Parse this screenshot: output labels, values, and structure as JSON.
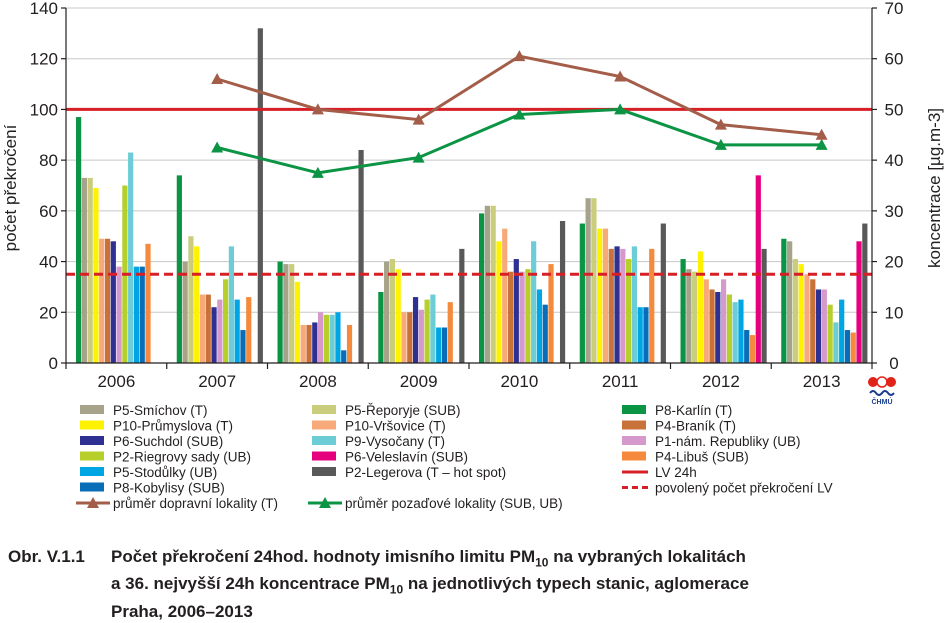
{
  "chart_data": {
    "type": "bar",
    "categories": [
      "2006",
      "2007",
      "2008",
      "2009",
      "2010",
      "2011",
      "2012",
      "2013"
    ],
    "ylabel_left": "počet překročení",
    "ylabel_right": "koncentrace [µg.m-3]",
    "ylim_left": [
      0,
      140
    ],
    "ylim_right": [
      0,
      70
    ],
    "yticks_left": [
      "0",
      "20",
      "40",
      "60",
      "80",
      "100",
      "120",
      "140"
    ],
    "yticks_right": [
      "0",
      "10",
      "20",
      "30",
      "40",
      "50",
      "60",
      "70"
    ],
    "bar_series": [
      {
        "name": "P8-Karlín (T)",
        "color": "#0b9444",
        "values": [
          97,
          74,
          40,
          28,
          59,
          55,
          41,
          49
        ]
      },
      {
        "name": "P5-Smíchov (T)",
        "color": "#a6a38a",
        "values": [
          73,
          40,
          39,
          40,
          62,
          65,
          37,
          48
        ]
      },
      {
        "name": "P5-Řeporyje (SUB)",
        "color": "#c9cd7c",
        "values": [
          73,
          50,
          39,
          41,
          62,
          65,
          36,
          41
        ]
      },
      {
        "name": "P10-Průmyslova (T)",
        "color": "#fff200",
        "values": [
          69,
          46,
          32,
          37,
          48,
          53,
          44,
          39
        ]
      },
      {
        "name": "P10-Vršovice (T)",
        "color": "#f7a97a",
        "values": [
          49,
          27,
          15,
          20,
          53,
          53,
          33,
          35
        ]
      },
      {
        "name": "P4-Braník (T)",
        "color": "#c8723a",
        "values": [
          49,
          27,
          15,
          20,
          36,
          45,
          29,
          33
        ]
      },
      {
        "name": "P6-Suchdol (SUB)",
        "color": "#2e3192",
        "values": [
          48,
          22,
          16,
          26,
          41,
          46,
          28,
          29
        ]
      },
      {
        "name": "P1-nám. Republiky (UB)",
        "color": "#d59acb",
        "values": [
          38,
          25,
          20,
          21,
          36,
          45,
          33,
          29
        ]
      },
      {
        "name": "P2-Riegrovy sady (UB)",
        "color": "#b6cf2a",
        "values": [
          70,
          33,
          19,
          25,
          37,
          41,
          27,
          23
        ]
      },
      {
        "name": "P9-Vysočany (T)",
        "color": "#6dcdd6",
        "values": [
          83,
          46,
          19,
          27,
          48,
          46,
          24,
          16
        ]
      },
      {
        "name": "P5-Stodůlky (UB)",
        "color": "#00a6e4",
        "values": [
          38,
          25,
          20,
          14,
          29,
          22,
          25,
          25
        ]
      },
      {
        "name": "P8-Kobylisy (SUB)",
        "color": "#0a6db8",
        "values": [
          38,
          13,
          5,
          14,
          23,
          22,
          13,
          13
        ]
      },
      {
        "name": "P4-Libuš (SUB)",
        "color": "#f58a3c",
        "values": [
          47,
          26,
          15,
          24,
          39,
          45,
          11,
          12
        ]
      },
      {
        "name": "P6-Veleslavín (SUB)",
        "color": "#e6007e",
        "values": [
          null,
          null,
          null,
          null,
          null,
          null,
          74,
          48
        ]
      },
      {
        "name": "P2-Legerova (T – hot spot)",
        "color": "#595959",
        "values": [
          null,
          132,
          84,
          45,
          56,
          55,
          45,
          55
        ]
      }
    ],
    "line_series": [
      {
        "name": "průměr dopravní lokality (T)",
        "color": "#a35d48",
        "axis": "right",
        "values": [
          null,
          56,
          50,
          48,
          60.5,
          56.5,
          47,
          45
        ]
      },
      {
        "name": "průměr pozaďové lokality (SUB, UB)",
        "color": "#0b9444",
        "axis": "right",
        "values": [
          null,
          42.5,
          37.5,
          40.5,
          49,
          50,
          43,
          43
        ]
      }
    ],
    "reference_lines": [
      {
        "name": "LV 24h",
        "color": "#d71f26",
        "value": 100,
        "style": "solid"
      },
      {
        "name": "povolený počet překročení LV",
        "color": "#d71f26",
        "value": 35,
        "style": "dashed"
      }
    ],
    "legend_columns": [
      [
        {
          "name": "P5-Smíchov (T)",
          "color": "#a6a38a",
          "kind": "bar"
        },
        {
          "name": "P10-Průmyslova (T)",
          "color": "#fff200",
          "kind": "bar"
        },
        {
          "name": "P6-Suchdol (SUB)",
          "color": "#2e3192",
          "kind": "bar"
        },
        {
          "name": "P2-Riegrovy sady (UB)",
          "color": "#b6cf2a",
          "kind": "bar"
        },
        {
          "name": "P5-Stodůlky (UB)",
          "color": "#00a6e4",
          "kind": "bar"
        },
        {
          "name": "P8-Kobylisy (SUB)",
          "color": "#0a6db8",
          "kind": "bar"
        },
        {
          "name": "průměr dopravní lokality (T)",
          "color": "#a35d48",
          "kind": "line-marker"
        }
      ],
      [
        {
          "name": "P5-Řeporyje (SUB)",
          "color": "#c9cd7c",
          "kind": "bar"
        },
        {
          "name": "P10-Vršovice (T)",
          "color": "#f7a97a",
          "kind": "bar"
        },
        {
          "name": "P9-Vysočany (T)",
          "color": "#6dcdd6",
          "kind": "bar"
        },
        {
          "name": "P6-Veleslavín (SUB)",
          "color": "#e6007e",
          "kind": "bar"
        },
        {
          "name": "P2-Legerova (T – hot spot)",
          "color": "#595959",
          "kind": "bar"
        },
        {
          "name": "",
          "color": "",
          "kind": "none"
        },
        {
          "name": "průměr pozaďové lokality (SUB, UB)",
          "color": "#0b9444",
          "kind": "line-marker"
        }
      ],
      [
        {
          "name": "P8-Karlín (T)",
          "color": "#0b9444",
          "kind": "bar"
        },
        {
          "name": "P4-Braník (T)",
          "color": "#c8723a",
          "kind": "bar"
        },
        {
          "name": "P1-nám. Republiky (UB)",
          "color": "#d59acb",
          "kind": "bar"
        },
        {
          "name": "P4-Libuš (SUB)",
          "color": "#f58a3c",
          "kind": "bar"
        },
        {
          "name": "LV 24h",
          "color": "#d71f26",
          "kind": "line"
        },
        {
          "name": "povolený počet překročení LV",
          "color": "#d71f26",
          "kind": "dashed"
        }
      ]
    ]
  },
  "logo": {
    "text": "ČHMÚ"
  },
  "caption": {
    "label": "Obr. V.1.1",
    "line1_a": "Počet překročení 24hod. hodnoty imisního limitu PM",
    "line1_sub": "10",
    "line1_b": " na vybraných lokalitách",
    "line2_a": "a 36. nejvyšší 24h koncentrace PM",
    "line2_sub": "10",
    "line2_b": " na jednotlivých typech stanic, aglomerace",
    "line3": "Praha, 2006–2013"
  }
}
